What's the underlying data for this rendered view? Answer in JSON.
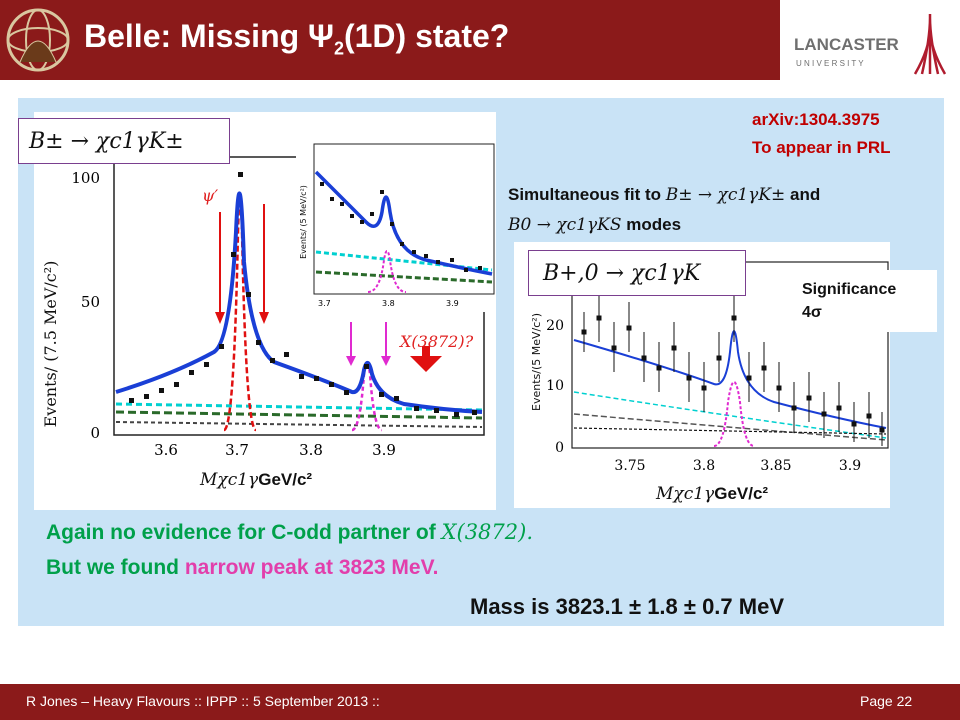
{
  "header": {
    "title_pre": "Belle: Missing Ψ",
    "title_sub": "2",
    "title_post": "(1D) state?",
    "logo_text_top": "LANCASTER",
    "logo_text_bottom": "U N I V E R S I T Y"
  },
  "reference": {
    "arxiv": "arXiv:1304.3975",
    "status": "To appear in PRL"
  },
  "left_plot": {
    "formula": "B± → χc1γK±",
    "psi_label": "ψ′",
    "x_label": "X(3872)?",
    "axis_prefix": "Mχc1γ",
    "axis_unit": "GeV/c²",
    "y_axis": "Events/ (7.5 MeV/c²)",
    "inset_y_axis": "Events/ (5 MeV/c²)",
    "y_ticks": [
      "0",
      "50",
      "100"
    ],
    "x_ticks": [
      "3.6",
      "3.7",
      "3.8",
      "3.9"
    ],
    "inset_x_ticks": [
      "3.7",
      "3.8",
      "3.9"
    ]
  },
  "fit_text": {
    "line1_pre": "Simultaneous fit to",
    "line1_math": "B± → χc1γK±",
    "line1_post": "and",
    "line2_math": "B0 → χc1γKS",
    "line2_post": "modes"
  },
  "right_plot": {
    "formula": "B+,0 → χc1γK",
    "significance_label": "Significance",
    "significance_value": "4σ",
    "axis_prefix": "Mχc1γ",
    "axis_unit": "GeV/c²",
    "y_axis": "Events/(5 MeV/c²)",
    "y_ticks": [
      "0",
      "10",
      "20"
    ],
    "x_ticks": [
      "3.75",
      "3.8",
      "3.85",
      "3.9"
    ]
  },
  "conclusions": {
    "line1_pre": "Again no evidence for C-odd partner of",
    "line1_math": "X(3872).",
    "line2_pre": "But we found",
    "line2_pink": "narrow peak at 3823 MeV.",
    "mass": "Mass is 3823.1 ± 1.8 ± 0.7 MeV"
  },
  "footer": {
    "left": "R Jones – Heavy Flavours  ::  IPPP  :: 5 September 2013  ::",
    "right": "Page 22"
  },
  "colors": {
    "title_bar": "#8b1a1a",
    "panel": "#c9e3f6",
    "green_text": "#00a04a",
    "pink_text": "#e23eab",
    "ref_red": "#c00000",
    "fit_blue": "#1a3fd6"
  }
}
